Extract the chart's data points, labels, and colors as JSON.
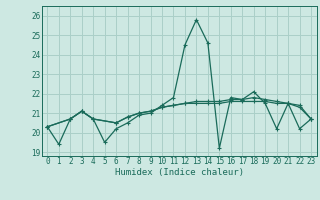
{
  "xlabel": "Humidex (Indice chaleur)",
  "xlim": [
    -0.5,
    23.5
  ],
  "ylim": [
    18.8,
    26.5
  ],
  "yticks": [
    19,
    20,
    21,
    22,
    23,
    24,
    25,
    26
  ],
  "xticks": [
    0,
    1,
    2,
    3,
    4,
    5,
    6,
    7,
    8,
    9,
    10,
    11,
    12,
    13,
    14,
    15,
    16,
    17,
    18,
    19,
    20,
    21,
    22,
    23
  ],
  "bg_color": "#cde8e2",
  "grid_color": "#aacfc8",
  "line_color": "#1a6b5a",
  "line1_x": [
    0,
    1,
    2,
    3,
    4,
    5,
    6,
    7,
    8,
    9,
    10,
    11,
    12,
    13,
    14,
    15,
    16,
    17,
    18,
    19,
    20,
    21,
    22,
    23
  ],
  "line1_y": [
    20.3,
    19.4,
    20.7,
    21.1,
    20.7,
    19.5,
    20.2,
    20.5,
    20.9,
    21.0,
    21.4,
    21.8,
    24.5,
    25.8,
    24.6,
    19.2,
    21.8,
    21.7,
    22.1,
    21.5,
    20.2,
    21.5,
    20.2,
    20.7
  ],
  "line2_x": [
    0,
    2,
    3,
    4,
    6,
    7,
    8,
    9,
    10,
    11,
    12,
    13,
    14,
    15,
    16,
    17,
    18,
    19,
    20,
    21,
    22,
    23
  ],
  "line2_y": [
    20.3,
    20.7,
    21.1,
    20.7,
    20.5,
    20.8,
    21.0,
    21.1,
    21.3,
    21.4,
    21.5,
    21.5,
    21.5,
    21.5,
    21.6,
    21.6,
    21.6,
    21.6,
    21.5,
    21.5,
    21.3,
    20.7
  ],
  "line3_x": [
    0,
    2,
    3,
    4,
    6,
    7,
    8,
    9,
    10,
    11,
    12,
    13,
    14,
    15,
    16,
    17,
    18,
    19,
    20,
    21,
    22,
    23
  ],
  "line3_y": [
    20.3,
    20.7,
    21.1,
    20.7,
    20.5,
    20.8,
    21.0,
    21.1,
    21.3,
    21.4,
    21.5,
    21.6,
    21.6,
    21.6,
    21.7,
    21.7,
    21.8,
    21.7,
    21.6,
    21.5,
    21.4,
    20.7
  ]
}
